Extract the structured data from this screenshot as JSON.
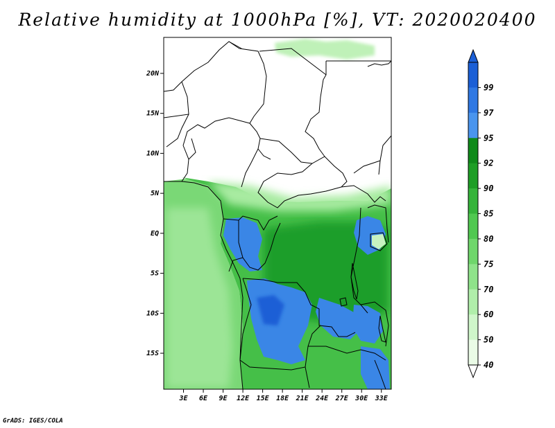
{
  "title": "Relative humidity at 1000hPa [%], VT: 2020020400",
  "credit": "GrADS: IGES/COLA",
  "map": {
    "lon_range": [
      0,
      34.5
    ],
    "lat_range": [
      -19.5,
      24.5
    ],
    "lon_ticks": [
      "3E",
      "6E",
      "9E",
      "12E",
      "15E",
      "18E",
      "21E",
      "24E",
      "27E",
      "30E",
      "33E"
    ],
    "lat_ticks": [
      "20N",
      "15N",
      "10N",
      "5N",
      "EQ",
      "5S",
      "10S",
      "15S"
    ]
  },
  "colorbar": {
    "labels": [
      "99",
      "97",
      "95",
      "92",
      "90",
      "85",
      "80",
      "75",
      "70",
      "60",
      "50",
      "40"
    ],
    "colors": [
      "#1b5fd6",
      "#2f78e3",
      "#4a95ee",
      "#0f8a1a",
      "#1e9e26",
      "#35b43a",
      "#50c850",
      "#6fd66b",
      "#8fe38a",
      "#b0eeaa",
      "#cff6ca",
      "#eafbe6"
    ]
  }
}
